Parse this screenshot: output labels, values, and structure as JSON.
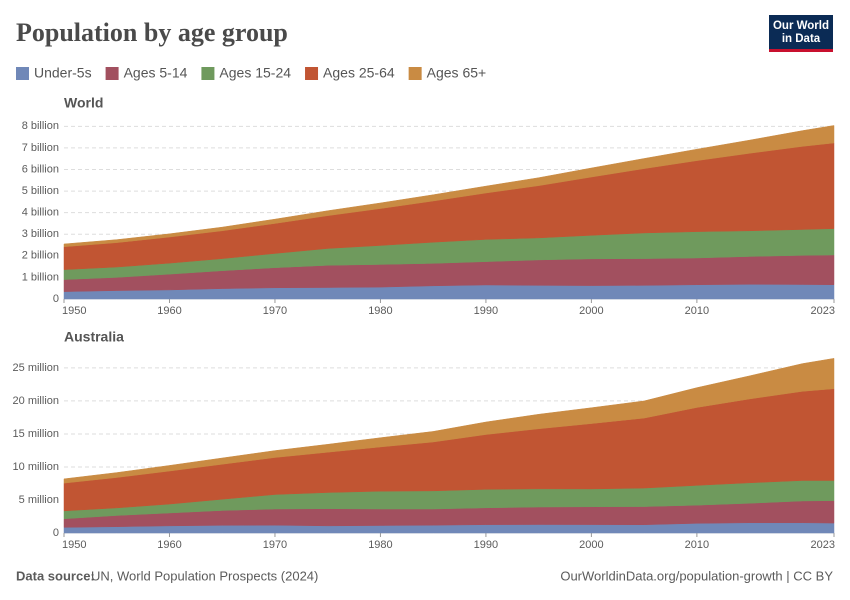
{
  "header": {
    "title": "Population by age group",
    "logo": [
      "Our World",
      "in Data"
    ]
  },
  "footer": {
    "source_label": "Data source:",
    "source": "UN, World Population Prospects (2024)",
    "url": "OurWorldinData.org/population-growth | CC BY"
  },
  "chart_data": [
    {
      "type": "area",
      "stacked": true,
      "title": "World",
      "grid": true,
      "x": [
        1950,
        1955,
        1960,
        1965,
        1970,
        1975,
        1980,
        1985,
        1990,
        1995,
        2000,
        2005,
        2010,
        2015,
        2020,
        2023
      ],
      "xlim": [
        1950,
        2023
      ],
      "xticks": [
        1950,
        1960,
        1970,
        1980,
        1990,
        2000,
        2010,
        2023
      ],
      "ylim": [
        0,
        8200000000
      ],
      "yticks": [
        0,
        {
          "value": 1000000000,
          "label": "1 billion"
        },
        {
          "value": 2000000000,
          "label": "2 billion"
        },
        {
          "value": 3000000000,
          "label": "3 billion"
        },
        {
          "value": 4000000000,
          "label": "4 billion"
        },
        {
          "value": 5000000000,
          "label": "5 billion"
        },
        {
          "value": 6000000000,
          "label": "6 billion"
        },
        {
          "value": 7000000000,
          "label": "7 billion"
        },
        {
          "value": 8000000000,
          "label": "8 billion"
        }
      ],
      "series": [
        {
          "name": "Under-5s",
          "color": "#7088b8",
          "values": [
            340000000,
            390000000,
            420000000,
            480000000,
            520000000,
            530000000,
            550000000,
            610000000,
            650000000,
            630000000,
            620000000,
            630000000,
            660000000,
            680000000,
            670000000,
            660000000
          ]
        },
        {
          "name": "Ages 5-14",
          "color": "#a2505f",
          "values": [
            560000000,
            610000000,
            730000000,
            830000000,
            930000000,
            1030000000,
            1050000000,
            1040000000,
            1080000000,
            1180000000,
            1240000000,
            1240000000,
            1240000000,
            1290000000,
            1350000000,
            1380000000
          ]
        },
        {
          "name": "Ages 15-24",
          "color": "#6f9a5d",
          "values": [
            460000000,
            480000000,
            510000000,
            560000000,
            660000000,
            780000000,
            880000000,
            980000000,
            1030000000,
            1020000000,
            1090000000,
            1190000000,
            1220000000,
            1190000000,
            1200000000,
            1220000000
          ]
        },
        {
          "name": "Ages 25-64",
          "color": "#c15533",
          "values": [
            1060000000,
            1130000000,
            1210000000,
            1290000000,
            1390000000,
            1520000000,
            1710000000,
            1910000000,
            2150000000,
            2420000000,
            2700000000,
            2980000000,
            3290000000,
            3590000000,
            3850000000,
            3970000000
          ]
        },
        {
          "name": "Ages 65+",
          "color": "#c98b43",
          "values": [
            130000000,
            140000000,
            150000000,
            170000000,
            200000000,
            230000000,
            260000000,
            290000000,
            320000000,
            370000000,
            420000000,
            470000000,
            530000000,
            610000000,
            730000000,
            810000000
          ]
        }
      ]
    },
    {
      "type": "area",
      "stacked": true,
      "title": "Australia",
      "grid": true,
      "x": [
        1950,
        1955,
        1960,
        1965,
        1970,
        1975,
        1980,
        1985,
        1990,
        1995,
        2000,
        2005,
        2010,
        2015,
        2020,
        2023
      ],
      "xlim": [
        1950,
        2023
      ],
      "xticks": [
        1950,
        1960,
        1970,
        1980,
        1990,
        2000,
        2010,
        2023
      ],
      "ylim": [
        0,
        26500000
      ],
      "yticks": [
        0,
        {
          "value": 5000000,
          "label": "5 million"
        },
        {
          "value": 10000000,
          "label": "10 million"
        },
        {
          "value": 15000000,
          "label": "15 million"
        },
        {
          "value": 20000000,
          "label": "20 million"
        },
        {
          "value": 25000000,
          "label": "25 million"
        }
      ],
      "series": [
        {
          "color": "#7088b8",
          "values": [
            850000,
            950000,
            1080000,
            1160000,
            1180000,
            1080000,
            1130000,
            1180000,
            1260000,
            1280000,
            1270000,
            1250000,
            1460000,
            1550000,
            1550000,
            1500000
          ]
        },
        {
          "color": "#a2505f",
          "values": [
            1300000,
            1700000,
            1950000,
            2250000,
            2450000,
            2600000,
            2500000,
            2450000,
            2550000,
            2650000,
            2700000,
            2750000,
            2750000,
            2950000,
            3300000,
            3400000
          ]
        },
        {
          "color": "#6f9a5d",
          "values": [
            1200000,
            1150000,
            1350000,
            1700000,
            2200000,
            2450000,
            2700000,
            2750000,
            2800000,
            2750000,
            2700000,
            2800000,
            3000000,
            3100000,
            3100000,
            3050000
          ]
        },
        {
          "color": "#c15533",
          "values": [
            4200000,
            4600000,
            5000000,
            5300000,
            5600000,
            6100000,
            6700000,
            7400000,
            8300000,
            9100000,
            9900000,
            10600000,
            11800000,
            12700000,
            13500000,
            13900000
          ]
        },
        {
          "color": "#c98b43",
          "values": [
            650000,
            750000,
            850000,
            950000,
            1050000,
            1200000,
            1400000,
            1600000,
            1900000,
            2200000,
            2400000,
            2600000,
            3000000,
            3500000,
            4200000,
            4600000
          ]
        }
      ]
    }
  ]
}
